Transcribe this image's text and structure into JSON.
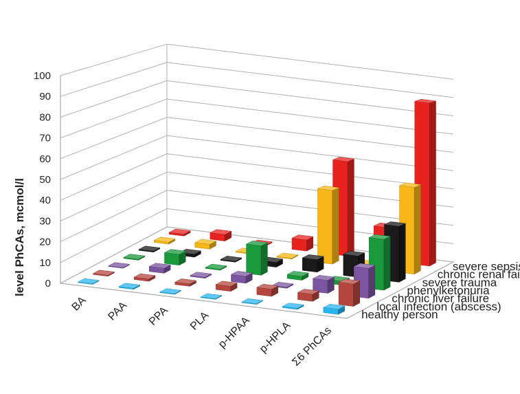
{
  "chart_data": {
    "type": "bar",
    "subtype": "3d-column",
    "title": "",
    "ylabel": "level PhCAs, mcmol/l",
    "xlabel": "",
    "ylim": [
      0,
      100
    ],
    "yticks": [
      0,
      10,
      20,
      30,
      40,
      50,
      60,
      70,
      80,
      90,
      100
    ],
    "grid": true,
    "categories": [
      "BA",
      "PAA",
      "PPA",
      "PLA",
      "p-HPAA",
      "p-HPLA",
      "Σ6 PhCAs"
    ],
    "series": [
      {
        "name": "healthy person",
        "color": "#29b6f0",
        "values": [
          0.3,
          0.5,
          0.3,
          0.3,
          0.3,
          0.6,
          2.5
        ]
      },
      {
        "name": "local infection (abscess)",
        "color": "#b5463f",
        "values": [
          0.5,
          1.2,
          1.2,
          2.5,
          3.5,
          3.5,
          11.0
        ]
      },
      {
        "name": "chronic liver failure",
        "color": "#7b55a0",
        "values": [
          0.3,
          2.5,
          0.5,
          3.5,
          0.5,
          6.5,
          15.0
        ]
      },
      {
        "name": "phenylketonuria",
        "color": "#1a9a3c",
        "values": [
          0.5,
          5.5,
          0.5,
          15.0,
          2.0,
          2.0,
          26.0
        ]
      },
      {
        "name": "severe trauma",
        "color": "#1a1a1a",
        "values": [
          0.5,
          1.5,
          0.5,
          2.5,
          6.5,
          11.0,
          29.0
        ]
      },
      {
        "name": "chronic renal failure",
        "color": "#f7b718",
        "values": [
          1.0,
          2.5,
          0.5,
          0.5,
          39.0,
          2.0,
          46.0
        ]
      },
      {
        "name": "severe sepsis",
        "color": "#e8231f",
        "values": [
          1.0,
          3.5,
          0.5,
          6.0,
          51.0,
          18.0,
          88.0
        ]
      }
    ]
  }
}
